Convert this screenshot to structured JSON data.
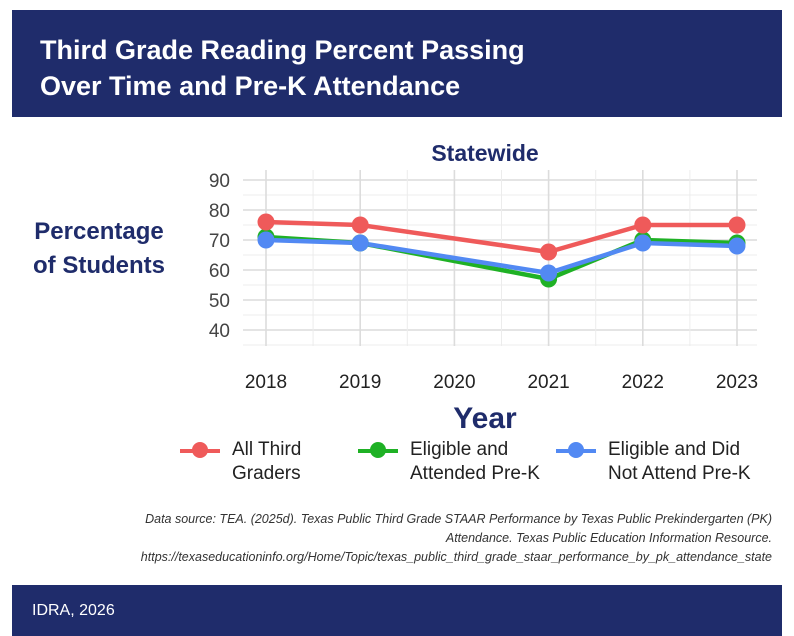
{
  "header": {
    "title": "Third Grade Reading Percent Passing\nOver Time and Pre-K Attendance"
  },
  "chart_data": {
    "type": "line",
    "title": "Statewide",
    "xlabel": "Year",
    "ylabel": "Percentage\nof Students",
    "x": [
      2018,
      2019,
      2020,
      2021,
      2022,
      2023
    ],
    "x_ticks": [
      "2018",
      "2019",
      "2020",
      "2021",
      "2022",
      "2023"
    ],
    "y_ticks": [
      90,
      80,
      70,
      60,
      50,
      40
    ],
    "ylim": [
      33,
      92
    ],
    "grid": true,
    "legend_position": "bottom",
    "series": [
      {
        "name": "Eligible and\nAttended Pre-K",
        "color": "#1fb125",
        "points": [
          [
            2018,
            71
          ],
          [
            2019,
            69
          ],
          [
            2021,
            57
          ],
          [
            2022,
            70
          ],
          [
            2023,
            69
          ]
        ]
      },
      {
        "name": "Eligible and Did\nNot Attend Pre-K",
        "color": "#5289f3",
        "points": [
          [
            2018,
            70
          ],
          [
            2019,
            69
          ],
          [
            2021,
            59
          ],
          [
            2022,
            69
          ],
          [
            2023,
            68
          ]
        ]
      },
      {
        "name": "All Third\nGraders",
        "color": "#ef5a5a",
        "points": [
          [
            2018,
            76
          ],
          [
            2019,
            75
          ],
          [
            2021,
            66
          ],
          [
            2022,
            75
          ],
          [
            2023,
            75
          ]
        ]
      }
    ],
    "legend_order": [
      2,
      0,
      1
    ]
  },
  "source": "Data source: TEA. (2025d). Texas Public Third Grade STAAR Performance by Texas Public Prekindergarten (PK)\nAttendance. Texas Public Education Information Resource.\nhttps://texaseducationinfo.org/Home/Topic/texas_public_third_grade_staar_performance_by_pk_attendance_state",
  "footer": {
    "credit": "IDRA, 2026"
  }
}
